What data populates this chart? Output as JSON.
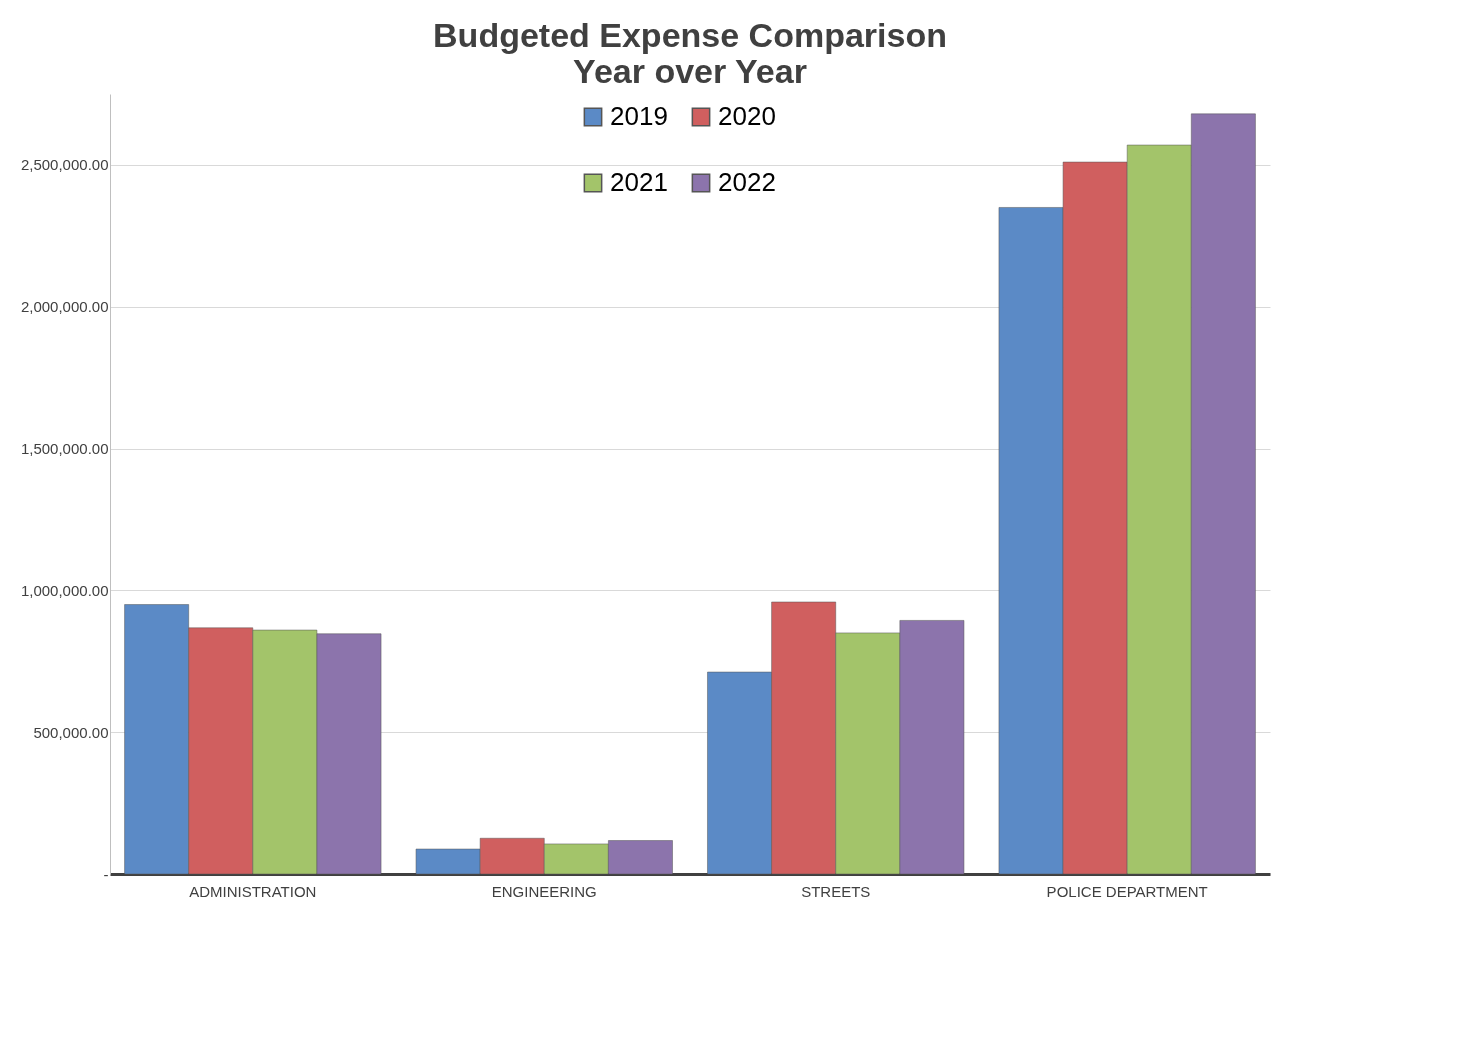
{
  "chart_data": {
    "type": "bar",
    "title": "Budgeted Expense Comparison\nYear over Year",
    "categories": [
      "ADMINISTRATION",
      "ENGINEERING",
      "STREETS",
      "POLICE DEPARTMENT"
    ],
    "series": [
      {
        "name": "2019",
        "color": "#5b8ac6",
        "values": [
          950000,
          88000,
          712000,
          2350000
        ]
      },
      {
        "name": "2020",
        "color": "#d05f5f",
        "values": [
          868000,
          126000,
          959000,
          2510000
        ]
      },
      {
        "name": "2021",
        "color": "#a3c46a",
        "values": [
          860000,
          106000,
          850000,
          2570000
        ]
      },
      {
        "name": "2022",
        "color": "#8c74ac",
        "values": [
          847000,
          118000,
          894000,
          2680000
        ]
      }
    ],
    "ylim": [
      0,
      2750000
    ],
    "yticks": [
      {
        "value": 0,
        "label": "-"
      },
      {
        "value": 500000,
        "label": "500,000.00"
      },
      {
        "value": 1000000,
        "label": "1,000,000.00"
      },
      {
        "value": 1500000,
        "label": "1,500,000.00"
      },
      {
        "value": 2000000,
        "label": "2,000,000.00"
      },
      {
        "value": 2500000,
        "label": "2,500,000.00"
      }
    ],
    "grid": "y",
    "legend": "top"
  }
}
